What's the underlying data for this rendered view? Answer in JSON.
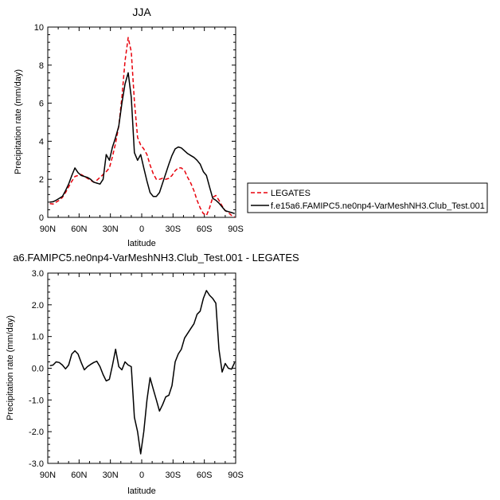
{
  "chart_data": [
    {
      "type": "line",
      "title": "JJA",
      "xlabel": "latitude",
      "ylabel": "Precipitation rate (mm/day)",
      "xlim": [
        90,
        -90
      ],
      "ylim": [
        0,
        10
      ],
      "x_ticks": [
        90,
        60,
        30,
        0,
        -30,
        -60,
        -90
      ],
      "x_tick_labels": [
        "90N",
        "60N",
        "30N",
        "0",
        "30S",
        "60S",
        "90S"
      ],
      "y_ticks": [
        0,
        2,
        4,
        6,
        8,
        10
      ],
      "y_tick_labels": [
        "0",
        "2",
        "4",
        "6",
        "8",
        "10"
      ],
      "legend": {
        "placement": "right"
      },
      "series": [
        {
          "name": "LEGATES",
          "color": "#e8000b",
          "dash": "dashed",
          "x": [
            88,
            85,
            82,
            79,
            76,
            73,
            70,
            67,
            64,
            61,
            58,
            55,
            52,
            49,
            46,
            43,
            40,
            37,
            34,
            31,
            28,
            25,
            22,
            19,
            16,
            13,
            10,
            7,
            4,
            1,
            -2,
            -5,
            -8,
            -11,
            -14,
            -17,
            -20,
            -23,
            -26,
            -29,
            -32,
            -35,
            -38,
            -41,
            -44,
            -47,
            -50,
            -53,
            -56,
            -59,
            -62,
            -65,
            -68,
            -71,
            -74,
            -77,
            -80,
            -83,
            -86,
            -89
          ],
          "y": [
            0.72,
            0.7,
            0.8,
            0.9,
            1.05,
            1.3,
            1.6,
            1.9,
            2.15,
            2.2,
            2.25,
            2.15,
            2.05,
            1.95,
            1.85,
            1.95,
            2.1,
            2.25,
            2.4,
            2.6,
            3.2,
            3.9,
            4.8,
            6.3,
            8.2,
            9.45,
            8.7,
            6.1,
            4.2,
            3.8,
            3.6,
            3.3,
            2.75,
            2.3,
            2.0,
            2.0,
            2.05,
            2.0,
            2.05,
            2.2,
            2.45,
            2.6,
            2.6,
            2.45,
            2.1,
            1.8,
            1.4,
            0.9,
            0.5,
            0.2,
            0.1,
            0.5,
            1.05,
            1.15,
            0.9,
            0.6,
            0.35,
            0.25,
            0.1,
            0.02
          ]
        },
        {
          "name": "f.e15a6.FAMIPC5.ne0np4-VarMeshNH3.Club_Test.001",
          "color": "#000000",
          "dash": "solid",
          "x": [
            88,
            85,
            82,
            79,
            76,
            73,
            70,
            67,
            64,
            61,
            58,
            55,
            52,
            49,
            46,
            43,
            40,
            37,
            34,
            31,
            28,
            25,
            22,
            19,
            16,
            13,
            10,
            7,
            4,
            1,
            -2,
            -5,
            -8,
            -11,
            -14,
            -17,
            -20,
            -23,
            -26,
            -29,
            -32,
            -35,
            -38,
            -41,
            -44,
            -47,
            -50,
            -53,
            -56,
            -59,
            -62,
            -65,
            -68,
            -71,
            -74,
            -77,
            -80,
            -83,
            -86,
            -89
          ],
          "y": [
            0.8,
            0.82,
            0.9,
            1.0,
            1.1,
            1.4,
            1.75,
            2.2,
            2.6,
            2.35,
            2.2,
            2.15,
            2.1,
            2.0,
            1.85,
            1.8,
            1.75,
            2.0,
            3.3,
            3.0,
            3.7,
            4.2,
            4.8,
            6.0,
            7.0,
            7.6,
            6.3,
            3.4,
            3.0,
            3.3,
            2.6,
            1.9,
            1.3,
            1.1,
            1.1,
            1.3,
            1.8,
            2.3,
            2.8,
            3.25,
            3.6,
            3.7,
            3.65,
            3.5,
            3.35,
            3.25,
            3.15,
            3.0,
            2.8,
            2.4,
            2.2,
            1.6,
            1.0,
            0.9,
            0.75,
            0.55,
            0.35,
            0.3,
            0.25,
            0.2
          ]
        }
      ]
    },
    {
      "type": "line",
      "title": "a6.FAMIPC5.ne0np4-VarMeshNH3.Club_Test.001 - LEGATES",
      "xlabel": "latitude",
      "ylabel": "Precipitation rate (mm/day)",
      "xlim": [
        90,
        -90
      ],
      "ylim": [
        -3,
        3
      ],
      "x_ticks": [
        90,
        60,
        30,
        0,
        -30,
        -60,
        -90
      ],
      "x_tick_labels": [
        "90N",
        "60N",
        "30N",
        "0",
        "30S",
        "60S",
        "90S"
      ],
      "y_ticks": [
        -3,
        -2,
        -1,
        0,
        1,
        2,
        3
      ],
      "y_tick_labels": [
        "-3.0",
        "-2.0",
        "-1.0",
        "0.0",
        "1.0",
        "2.0",
        "3.0"
      ],
      "series": [
        {
          "color": "#000000",
          "dash": "solid",
          "x": [
            88,
            85,
            82,
            79,
            76,
            73,
            70,
            67,
            64,
            61,
            58,
            55,
            52,
            49,
            46,
            43,
            40,
            37,
            34,
            31,
            28,
            25,
            22,
            19,
            16,
            13,
            10,
            7,
            4,
            1,
            -2,
            -5,
            -8,
            -11,
            -14,
            -17,
            -20,
            -23,
            -26,
            -29,
            -32,
            -35,
            -38,
            -41,
            -44,
            -47,
            -50,
            -53,
            -56,
            -59,
            -62,
            -65,
            -68,
            -71,
            -74,
            -77,
            -80,
            -83,
            -86,
            -89
          ],
          "y": [
            0.08,
            0.1,
            0.2,
            0.18,
            0.1,
            -0.02,
            0.1,
            0.45,
            0.55,
            0.45,
            0.18,
            -0.05,
            0.05,
            0.12,
            0.18,
            0.22,
            0.05,
            -0.2,
            -0.4,
            -0.35,
            0.1,
            0.6,
            0.05,
            -0.05,
            0.2,
            0.1,
            0.05,
            -1.55,
            -2.0,
            -2.7,
            -2.0,
            -1.0,
            -0.3,
            -0.65,
            -1.0,
            -1.35,
            -1.15,
            -0.9,
            -0.85,
            -0.55,
            0.2,
            0.45,
            0.6,
            0.95,
            1.1,
            1.25,
            1.4,
            1.7,
            1.8,
            2.2,
            2.45,
            2.3,
            2.2,
            2.05,
            0.6,
            -0.12,
            0.15,
            0.0,
            -0.03,
            0.18
          ]
        }
      ]
    }
  ]
}
